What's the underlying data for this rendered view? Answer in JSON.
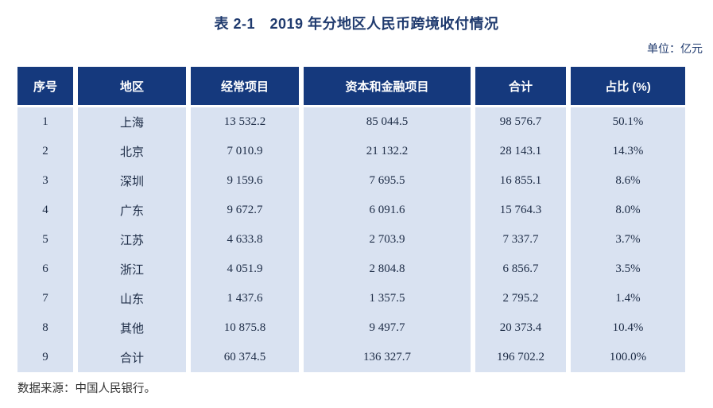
{
  "page": {
    "title": "表 2-1　2019 年分地区人民币跨境收付情况",
    "unit_label": "单位：亿元",
    "source_note": "数据来源：中国人民银行。"
  },
  "table": {
    "columns": [
      "序号",
      "地区",
      "经常项目",
      "资本和金融项目",
      "合计",
      "占比 (%)"
    ],
    "rows": [
      [
        "1",
        "上海",
        "13 532.2",
        "85 044.5",
        "98 576.7",
        "50.1%"
      ],
      [
        "2",
        "北京",
        "7 010.9",
        "21 132.2",
        "28 143.1",
        "14.3%"
      ],
      [
        "3",
        "深圳",
        "9 159.6",
        "7 695.5",
        "16 855.1",
        "8.6%"
      ],
      [
        "4",
        "广东",
        "9 672.7",
        "6 091.6",
        "15 764.3",
        "8.0%"
      ],
      [
        "5",
        "江苏",
        "4 633.8",
        "2 703.9",
        "7 337.7",
        "3.7%"
      ],
      [
        "6",
        "浙江",
        "4 051.9",
        "2 804.8",
        "6 856.7",
        "3.5%"
      ],
      [
        "7",
        "山东",
        "1 437.6",
        "1 357.5",
        "2 795.2",
        "1.4%"
      ],
      [
        "8",
        "其他",
        "10 875.8",
        "9 497.7",
        "20 373.4",
        "10.4%"
      ],
      [
        "9",
        "合计",
        "60 374.5",
        "136 327.7",
        "196 702.2",
        "100.0%"
      ]
    ]
  },
  "colors": {
    "header_bg": "#15397d",
    "header_text": "#ffffff",
    "row_bg": "#d9e2f1",
    "body_text": "#1c2b45",
    "title_text": "#1f3a6e",
    "source_text": "#333333",
    "page_bg": "#ffffff"
  }
}
